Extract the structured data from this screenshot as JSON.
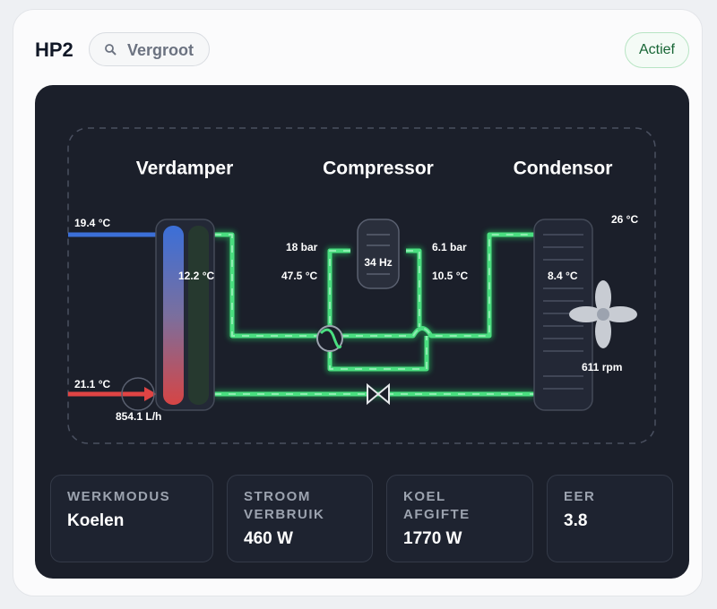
{
  "header": {
    "title": "HP2",
    "zoom_button": "Vergroot",
    "status": "Actief"
  },
  "diagram": {
    "sections": [
      "Verdamper",
      "Compressor",
      "Condensor"
    ],
    "source_out_temp": "19.4 °C",
    "source_in_temp": "21.1 °C",
    "flow": "854.1 L/h",
    "evaporator_temp": "12.2 °C",
    "high_pressure": "18 bar",
    "discharge_temp": "47.5 °C",
    "compressor_speed": "34 Hz",
    "low_pressure": "6.1 bar",
    "suction_temp": "10.5 °C",
    "condensor_temp": "8.4 °C",
    "ambient_temp": "26 °C",
    "fan_speed": "611 rpm"
  },
  "stats": [
    {
      "label": "WERKMODUS",
      "value": "Koelen"
    },
    {
      "label": "STROOM VERBRUIK",
      "value": "460 W"
    },
    {
      "label": "KOEL AFGIFTE",
      "value": "1770 W"
    },
    {
      "label": "EER",
      "value": "3.8"
    }
  ]
}
